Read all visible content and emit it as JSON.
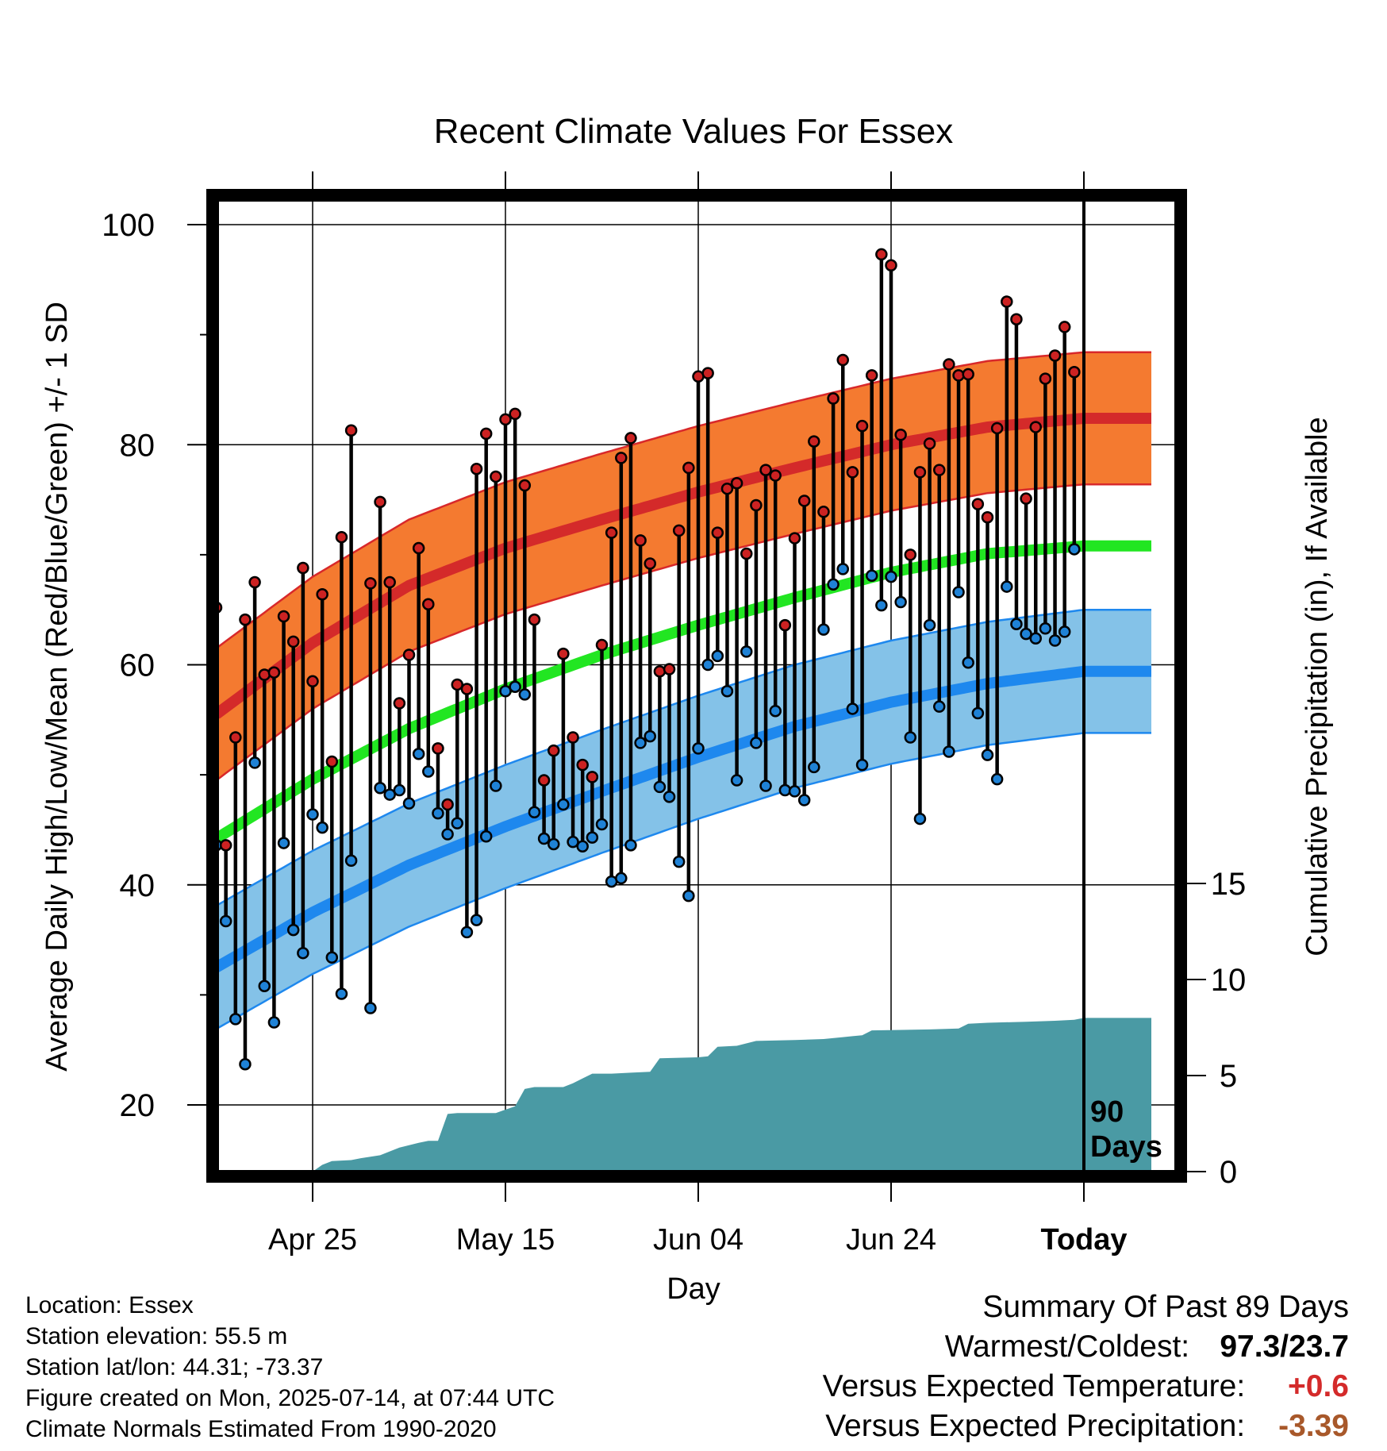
{
  "chart_data": {
    "type": "line",
    "title": "Recent Climate Values For Essex",
    "xlabel": "Day",
    "ylabel": "Average Daily High/Low/Mean (Red/Blue/Green) +/- 1 SD",
    "y2label": "Cumulative Precipitation (in), If Available",
    "ylim": [
      14,
      103
    ],
    "y2lim": [
      0,
      40
    ],
    "xlim": [
      -13,
      88
    ],
    "x_ticks": [
      {
        "x": 0,
        "label": "Apr 25"
      },
      {
        "x": 20,
        "label": "May 15"
      },
      {
        "x": 40,
        "label": "Jun 04"
      },
      {
        "x": 60,
        "label": "Jun 24"
      },
      {
        "x": 80,
        "label": "Today"
      }
    ],
    "y_ticks": [
      20,
      40,
      60,
      80,
      100
    ],
    "y2_ticks": [
      0,
      5,
      10,
      15
    ],
    "today_marker_label": [
      "90",
      "Days"
    ],
    "grid": true,
    "colors": {
      "high_band": "#f47a30",
      "high_band_edge": "#d8282a",
      "high_mean": "#d42a2a",
      "low_band": "#84c2e8",
      "low_band_edge": "#1e88ee",
      "low_mean": "#1e88ee",
      "mean": "#22e622",
      "precip": "#4a9aa4",
      "high_marker": "#cc2222",
      "low_marker": "#1f82d6"
    },
    "normal_high": [
      {
        "x": -10,
        "y": 55.5
      },
      {
        "x": 0,
        "y": 62.0
      },
      {
        "x": 10,
        "y": 67.2
      },
      {
        "x": 20,
        "y": 70.6
      },
      {
        "x": 30,
        "y": 73.2
      },
      {
        "x": 40,
        "y": 75.7
      },
      {
        "x": 50,
        "y": 77.9
      },
      {
        "x": 60,
        "y": 80.0
      },
      {
        "x": 70,
        "y": 81.6
      },
      {
        "x": 80,
        "y": 82.4
      },
      {
        "x": 87,
        "y": 82.4
      }
    ],
    "normal_high_sd": 6.0,
    "normal_low": [
      {
        "x": -10,
        "y": 32.5
      },
      {
        "x": 0,
        "y": 37.5
      },
      {
        "x": 10,
        "y": 41.8
      },
      {
        "x": 20,
        "y": 45.3
      },
      {
        "x": 30,
        "y": 48.5
      },
      {
        "x": 40,
        "y": 51.6
      },
      {
        "x": 50,
        "y": 54.4
      },
      {
        "x": 60,
        "y": 56.6
      },
      {
        "x": 70,
        "y": 58.3
      },
      {
        "x": 80,
        "y": 59.4
      },
      {
        "x": 87,
        "y": 59.4
      }
    ],
    "normal_low_sd": 5.6,
    "normal_mean": [
      {
        "x": -10,
        "y": 44.2
      },
      {
        "x": 0,
        "y": 49.6
      },
      {
        "x": 10,
        "y": 54.2
      },
      {
        "x": 20,
        "y": 57.8
      },
      {
        "x": 30,
        "y": 60.9
      },
      {
        "x": 40,
        "y": 63.6
      },
      {
        "x": 50,
        "y": 66.1
      },
      {
        "x": 60,
        "y": 68.4
      },
      {
        "x": 70,
        "y": 70.1
      },
      {
        "x": 80,
        "y": 70.8
      },
      {
        "x": 87,
        "y": 70.8
      }
    ],
    "daily": [
      {
        "x": -10,
        "high": 65.2,
        "low": 43.6
      },
      {
        "x": -9,
        "high": 43.6,
        "low": 36.7
      },
      {
        "x": -8,
        "high": 53.4,
        "low": 27.8
      },
      {
        "x": -7,
        "high": 64.1,
        "low": 23.7
      },
      {
        "x": -6,
        "high": 67.5,
        "low": 51.1
      },
      {
        "x": -5,
        "high": 59.1,
        "low": 30.8
      },
      {
        "x": -4,
        "high": 59.3,
        "low": 27.5
      },
      {
        "x": -3,
        "high": 64.4,
        "low": 43.8
      },
      {
        "x": -2,
        "high": 62.1,
        "low": 35.9
      },
      {
        "x": -1,
        "high": 68.8,
        "low": 33.8
      },
      {
        "x": 0,
        "high": 58.5,
        "low": 46.4
      },
      {
        "x": 1,
        "high": 66.4,
        "low": 45.2
      },
      {
        "x": 2,
        "high": 51.2,
        "low": 33.4
      },
      {
        "x": 3,
        "high": 71.6,
        "low": 30.1
      },
      {
        "x": 4,
        "high": 81.3,
        "low": 42.2
      },
      {
        "x": 6,
        "high": 67.4,
        "low": 28.8
      },
      {
        "x": 7,
        "high": 74.8,
        "low": 48.8
      },
      {
        "x": 8,
        "high": 67.5,
        "low": 48.2
      },
      {
        "x": 9,
        "high": 56.5,
        "low": 48.6
      },
      {
        "x": 10,
        "high": 60.9,
        "low": 47.4
      },
      {
        "x": 11,
        "high": 70.6,
        "low": 51.9
      },
      {
        "x": 12,
        "high": 65.5,
        "low": 50.3
      },
      {
        "x": 13,
        "high": 52.4,
        "low": 46.5
      },
      {
        "x": 14,
        "high": 47.3,
        "low": 44.6
      },
      {
        "x": 15,
        "high": 58.2,
        "low": 45.6
      },
      {
        "x": 16,
        "high": 57.8,
        "low": 35.7
      },
      {
        "x": 17,
        "high": 77.8,
        "low": 36.8
      },
      {
        "x": 18,
        "high": 81.0,
        "low": 44.4
      },
      {
        "x": 19,
        "high": 77.1,
        "low": 49.0
      },
      {
        "x": 20,
        "high": 82.3,
        "low": 57.6
      },
      {
        "x": 21,
        "high": 82.8,
        "low": 58.0
      },
      {
        "x": 22,
        "high": 76.3,
        "low": 57.3
      },
      {
        "x": 23,
        "high": 64.1,
        "low": 46.6
      },
      {
        "x": 24,
        "high": 49.5,
        "low": 44.2
      },
      {
        "x": 25,
        "high": 52.2,
        "low": 43.7
      },
      {
        "x": 26,
        "high": 61.0,
        "low": 47.3
      },
      {
        "x": 27,
        "high": 53.4,
        "low": 43.9
      },
      {
        "x": 28,
        "high": 50.9,
        "low": 43.5
      },
      {
        "x": 29,
        "high": 49.8,
        "low": 44.3
      },
      {
        "x": 30,
        "high": 61.8,
        "low": 45.5
      },
      {
        "x": 31,
        "high": 72.0,
        "low": 40.3
      },
      {
        "x": 32,
        "high": 78.8,
        "low": 40.6
      },
      {
        "x": 33,
        "high": 80.6,
        "low": 43.6
      },
      {
        "x": 34,
        "high": 71.3,
        "low": 52.9
      },
      {
        "x": 35,
        "high": 69.2,
        "low": 53.5
      },
      {
        "x": 36,
        "high": 59.4,
        "low": 48.9
      },
      {
        "x": 37,
        "high": 59.6,
        "low": 48.0
      },
      {
        "x": 38,
        "high": 72.2,
        "low": 42.1
      },
      {
        "x": 39,
        "high": 77.9,
        "low": 39.0
      },
      {
        "x": 40,
        "high": 86.2,
        "low": 52.4
      },
      {
        "x": 41,
        "high": 86.5,
        "low": 60.0
      },
      {
        "x": 42,
        "high": 72.0,
        "low": 60.8
      },
      {
        "x": 43,
        "high": 76.0,
        "low": 57.6
      },
      {
        "x": 44,
        "high": 76.5,
        "low": 49.5
      },
      {
        "x": 45,
        "high": 70.1,
        "low": 61.2
      },
      {
        "x": 46,
        "high": 74.5,
        "low": 52.9
      },
      {
        "x": 47,
        "high": 77.7,
        "low": 49.0
      },
      {
        "x": 48,
        "high": 77.2,
        "low": 55.8
      },
      {
        "x": 49,
        "high": 63.6,
        "low": 48.6
      },
      {
        "x": 50,
        "high": 71.5,
        "low": 48.5
      },
      {
        "x": 51,
        "high": 74.9,
        "low": 47.7
      },
      {
        "x": 52,
        "high": 80.3,
        "low": 50.7
      },
      {
        "x": 53,
        "high": 73.9,
        "low": 63.2
      },
      {
        "x": 54,
        "high": 84.2,
        "low": 67.3
      },
      {
        "x": 55,
        "high": 87.7,
        "low": 68.7
      },
      {
        "x": 56,
        "high": 77.5,
        "low": 56.0
      },
      {
        "x": 57,
        "high": 81.7,
        "low": 50.9
      },
      {
        "x": 58,
        "high": 86.3,
        "low": 68.1
      },
      {
        "x": 59,
        "high": 97.3,
        "low": 65.4
      },
      {
        "x": 60,
        "high": 96.3,
        "low": 68.0
      },
      {
        "x": 61,
        "high": 80.9,
        "low": 65.7
      },
      {
        "x": 62,
        "high": 70.0,
        "low": 53.4
      },
      {
        "x": 63,
        "high": 77.5,
        "low": 46.0
      },
      {
        "x": 64,
        "high": 80.1,
        "low": 63.6
      },
      {
        "x": 65,
        "high": 77.7,
        "low": 56.2
      },
      {
        "x": 66,
        "high": 87.3,
        "low": 52.1
      },
      {
        "x": 67,
        "high": 86.3,
        "low": 66.6
      },
      {
        "x": 68,
        "high": 86.4,
        "low": 60.2
      },
      {
        "x": 69,
        "high": 74.6,
        "low": 55.6
      },
      {
        "x": 70,
        "high": 73.4,
        "low": 51.8
      },
      {
        "x": 71,
        "high": 81.5,
        "low": 49.6
      },
      {
        "x": 72,
        "high": 93.0,
        "low": 67.1
      },
      {
        "x": 73,
        "high": 91.4,
        "low": 63.7
      },
      {
        "x": 74,
        "high": 75.1,
        "low": 62.8
      },
      {
        "x": 75,
        "high": 81.6,
        "low": 62.4
      },
      {
        "x": 76,
        "high": 86.0,
        "low": 63.3
      },
      {
        "x": 77,
        "high": 88.1,
        "low": 62.2
      },
      {
        "x": 78,
        "high": 90.7,
        "low": 63.0
      },
      {
        "x": 79,
        "high": 86.6,
        "low": 70.5
      }
    ],
    "cumulative_precip": [
      {
        "x": 0,
        "y": 0.0
      },
      {
        "x": 1,
        "y": 0.35
      },
      {
        "x": 2,
        "y": 0.55
      },
      {
        "x": 4,
        "y": 0.6
      },
      {
        "x": 5,
        "y": 0.7
      },
      {
        "x": 7,
        "y": 0.85
      },
      {
        "x": 9,
        "y": 1.25
      },
      {
        "x": 11,
        "y": 1.5
      },
      {
        "x": 12,
        "y": 1.6
      },
      {
        "x": 13,
        "y": 1.6
      },
      {
        "x": 14,
        "y": 3.0
      },
      {
        "x": 15,
        "y": 3.05
      },
      {
        "x": 19,
        "y": 3.05
      },
      {
        "x": 21,
        "y": 3.4
      },
      {
        "x": 22,
        "y": 4.3
      },
      {
        "x": 23,
        "y": 4.4
      },
      {
        "x": 26,
        "y": 4.4
      },
      {
        "x": 27,
        "y": 4.6
      },
      {
        "x": 28,
        "y": 4.85
      },
      {
        "x": 29,
        "y": 5.1
      },
      {
        "x": 31,
        "y": 5.1
      },
      {
        "x": 33,
        "y": 5.15
      },
      {
        "x": 35,
        "y": 5.2
      },
      {
        "x": 36,
        "y": 5.9
      },
      {
        "x": 40,
        "y": 5.95
      },
      {
        "x": 41,
        "y": 6.0
      },
      {
        "x": 42,
        "y": 6.5
      },
      {
        "x": 44,
        "y": 6.55
      },
      {
        "x": 46,
        "y": 6.8
      },
      {
        "x": 50,
        "y": 6.85
      },
      {
        "x": 53,
        "y": 6.9
      },
      {
        "x": 55,
        "y": 7.0
      },
      {
        "x": 56,
        "y": 7.05
      },
      {
        "x": 57,
        "y": 7.1
      },
      {
        "x": 58,
        "y": 7.35
      },
      {
        "x": 64,
        "y": 7.4
      },
      {
        "x": 67,
        "y": 7.45
      },
      {
        "x": 68,
        "y": 7.7
      },
      {
        "x": 70,
        "y": 7.75
      },
      {
        "x": 74,
        "y": 7.8
      },
      {
        "x": 77,
        "y": 7.85
      },
      {
        "x": 79,
        "y": 7.9
      },
      {
        "x": 80,
        "y": 8.0
      },
      {
        "x": 87,
        "y": 8.0
      }
    ]
  },
  "info": {
    "location": "Location: Essex",
    "elevation": "Station elevation: 55.5 m",
    "latlon": "Station lat/lon: 44.31; -73.37",
    "created": "Figure created on Mon, 2025-07-14, at 07:44 UTC",
    "normals": "Climate Normals Estimated From 1990-2020"
  },
  "summary": {
    "title": "Summary Of Past 89 Days",
    "warmest_coldest_label": "Warmest/Coldest:",
    "warmest_coldest_value": "97.3/23.7",
    "temp_label": "Versus Expected Temperature:",
    "temp_value": "+0.6",
    "temp_color": "#d42a2a",
    "precip_label": "Versus Expected Precipitation:",
    "precip_value": "-3.39",
    "precip_color": "#a8582a"
  }
}
